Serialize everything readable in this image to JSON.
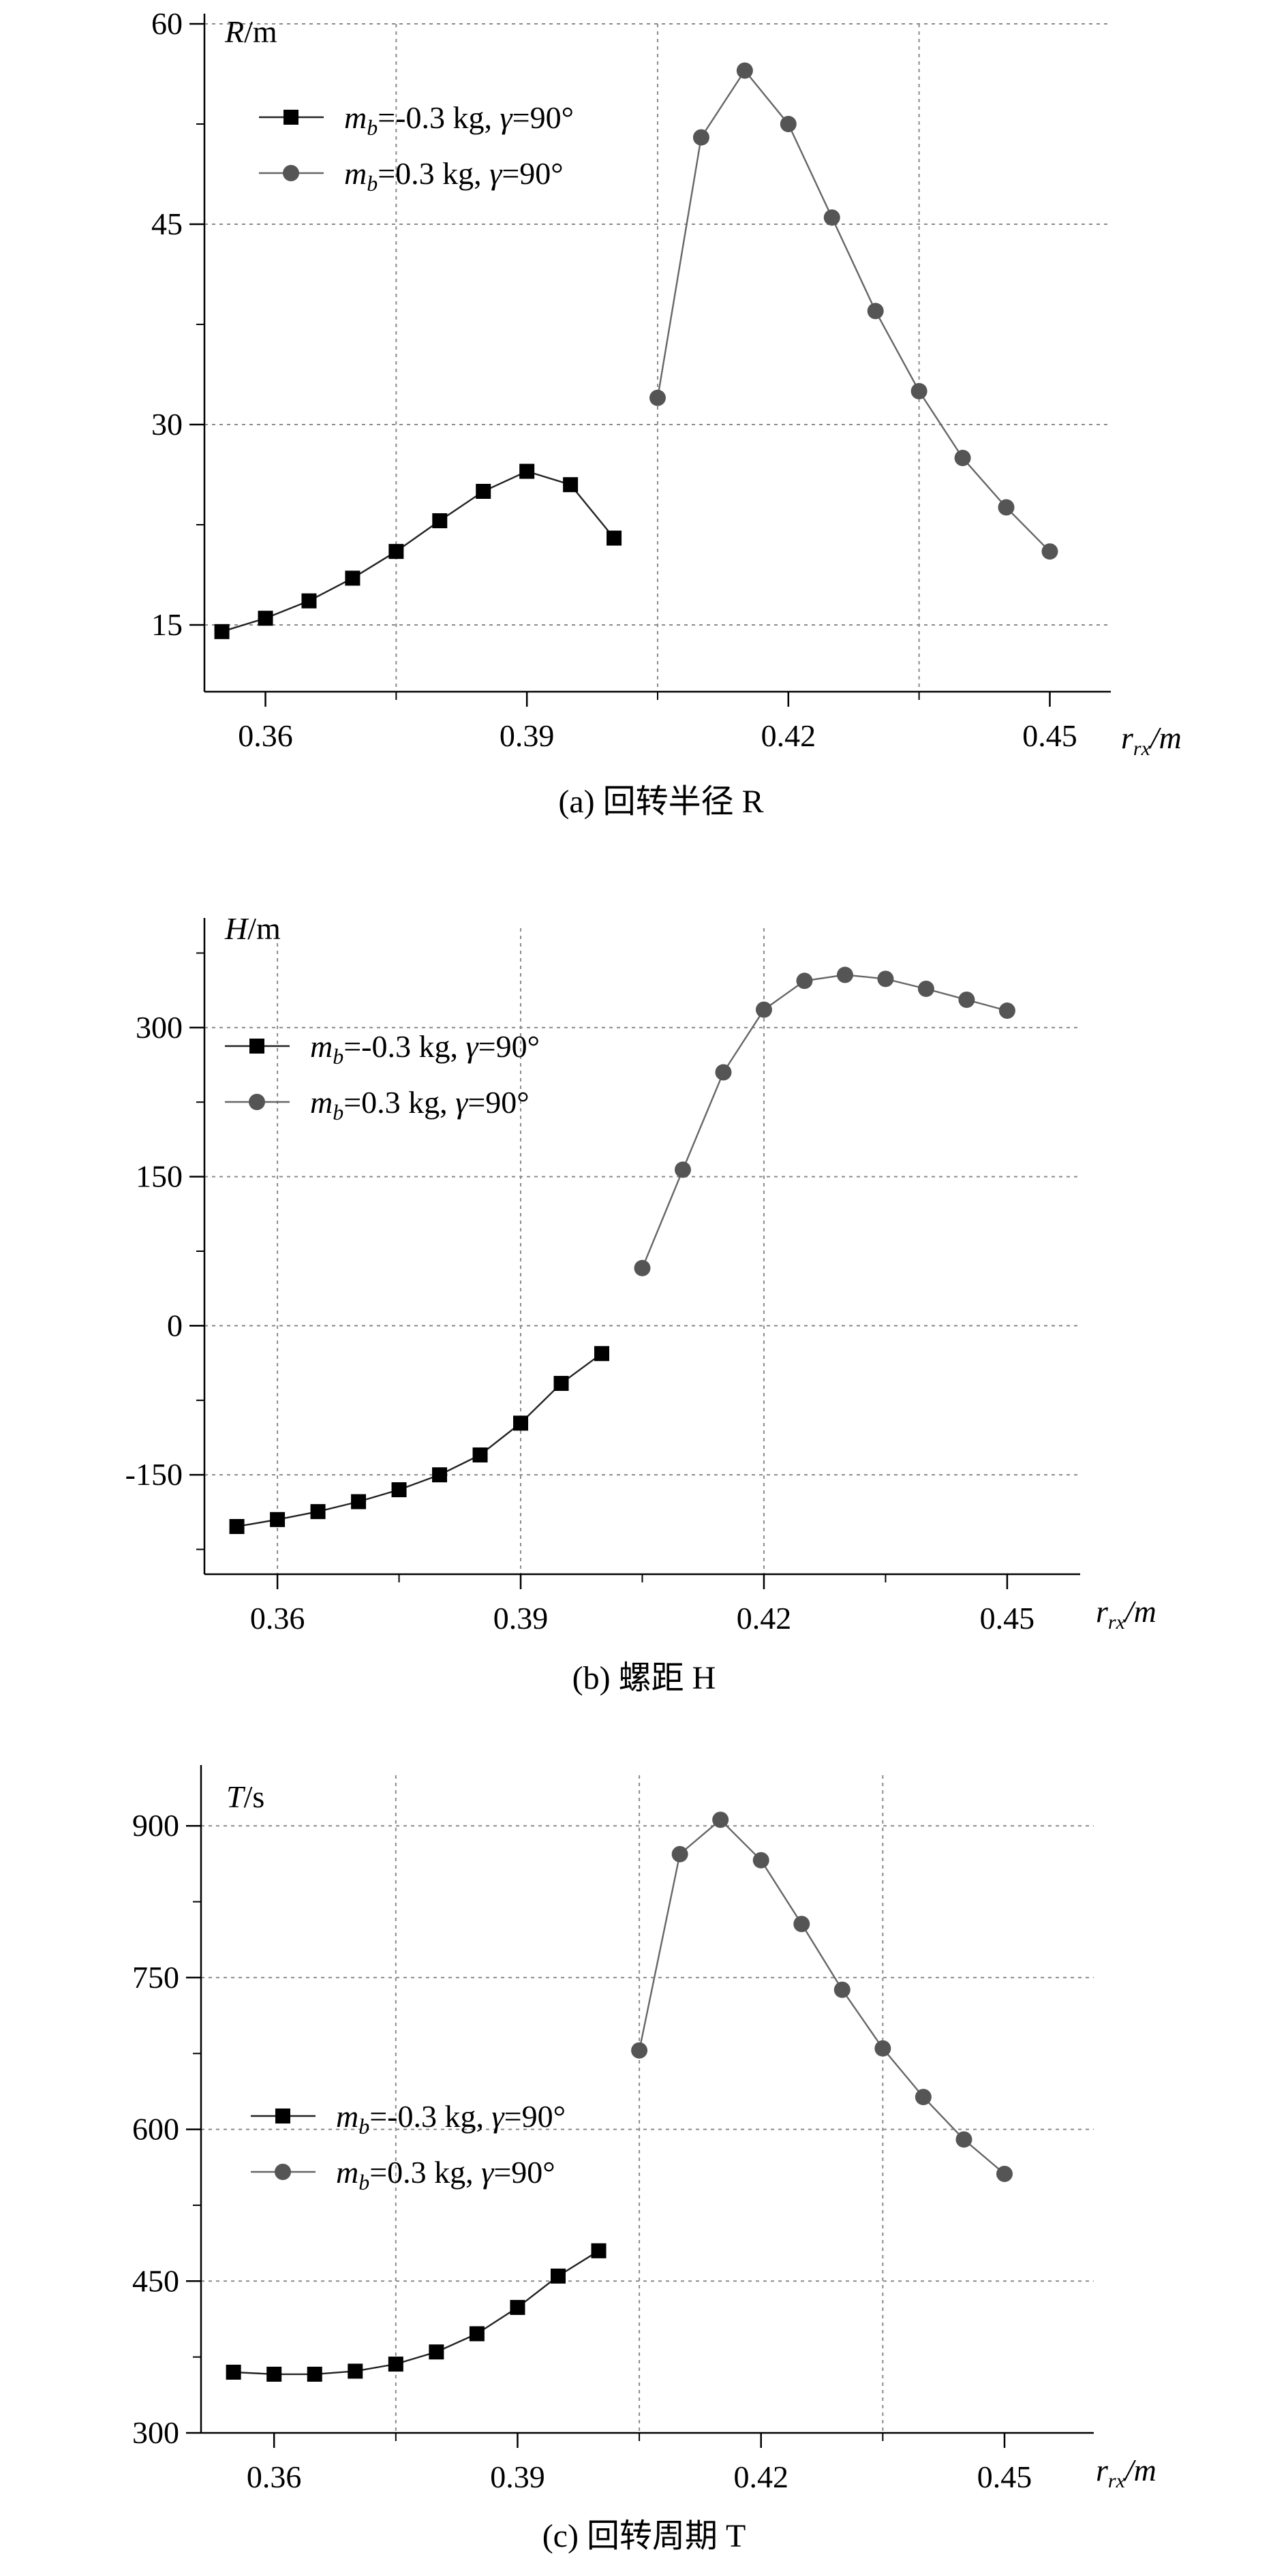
{
  "chart_data": [
    {
      "type": "line",
      "panel": "a",
      "caption": "(a) 回转半径 R",
      "ylabel_sym": "R",
      "ylabel_unit": "/m",
      "xlabel_main": "r",
      "xlabel_sub": "rx",
      "xlabel_unit": "/m",
      "xlim": [
        0.353,
        0.457
      ],
      "ylim": [
        10,
        60
      ],
      "xticks": [
        "0.36",
        "0.39",
        "0.42",
        "0.45"
      ],
      "yticks": [
        "15",
        "30",
        "45",
        "60"
      ],
      "legend_position": "top-left",
      "series": [
        {
          "name": "mb=-0.3 kg, γ=90°",
          "marker": "square",
          "color": "#000000",
          "x": [
            0.355,
            0.36,
            0.365,
            0.37,
            0.375,
            0.38,
            0.385,
            0.39,
            0.395,
            0.4
          ],
          "y": [
            14.5,
            15.5,
            16.8,
            18.5,
            20.5,
            22.8,
            25.0,
            26.5,
            25.5,
            21.5
          ]
        },
        {
          "name": "mb=0.3 kg, γ=90°",
          "marker": "circle",
          "color": "#555555",
          "x": [
            0.405,
            0.41,
            0.415,
            0.42,
            0.425,
            0.43,
            0.435,
            0.44,
            0.445,
            0.45
          ],
          "y": [
            32.0,
            51.5,
            56.5,
            52.5,
            45.5,
            38.5,
            32.5,
            27.5,
            23.8,
            20.5
          ]
        }
      ]
    },
    {
      "type": "line",
      "panel": "b",
      "caption": "(b) 螺距 H",
      "ylabel_sym": "H",
      "ylabel_unit": "/m",
      "xlabel_main": "r",
      "xlabel_sub": "rx",
      "xlabel_unit": "/m",
      "xlim": [
        0.351,
        0.459
      ],
      "ylim": [
        -250,
        400
      ],
      "xticks": [
        "0.36",
        "0.39",
        "0.42",
        "0.45"
      ],
      "yticks": [
        "-150",
        "0",
        "150",
        "300"
      ],
      "legend_position": "top-left",
      "series": [
        {
          "name": "mb=-0.3 kg, γ=90°",
          "marker": "square",
          "color": "#000000",
          "x": [
            0.355,
            0.36,
            0.365,
            0.37,
            0.375,
            0.38,
            0.385,
            0.39,
            0.395,
            0.4
          ],
          "y": [
            -202,
            -195,
            -187,
            -177,
            -165,
            -150,
            -130,
            -98,
            -58,
            -28
          ]
        },
        {
          "name": "mb=0.3 kg, γ=90°",
          "marker": "circle",
          "color": "#555555",
          "x": [
            0.405,
            0.41,
            0.415,
            0.42,
            0.425,
            0.43,
            0.435,
            0.44,
            0.445,
            0.45
          ],
          "y": [
            58,
            157,
            255,
            318,
            347,
            353,
            349,
            339,
            328,
            317
          ]
        }
      ]
    },
    {
      "type": "line",
      "panel": "c",
      "caption": "(c) 回转周期 T",
      "ylabel_sym": "T",
      "ylabel_unit": "/s",
      "xlabel_main": "r",
      "xlabel_sub": "rx",
      "xlabel_unit": "/m",
      "xlim": [
        0.351,
        0.461
      ],
      "ylim": [
        300,
        950
      ],
      "xticks": [
        "0.36",
        "0.39",
        "0.42",
        "0.45"
      ],
      "yticks": [
        "300",
        "450",
        "600",
        "750",
        "900"
      ],
      "legend_position": "middle-left",
      "series": [
        {
          "name": "mb=-0.3 kg, γ=90°",
          "marker": "square",
          "color": "#000000",
          "x": [
            0.355,
            0.36,
            0.365,
            0.37,
            0.375,
            0.38,
            0.385,
            0.39,
            0.395,
            0.4
          ],
          "y": [
            360,
            358,
            358,
            361,
            368,
            380,
            398,
            424,
            455,
            480
          ]
        },
        {
          "name": "mb=0.3 kg, γ=90°",
          "marker": "circle",
          "color": "#555555",
          "x": [
            0.405,
            0.41,
            0.415,
            0.42,
            0.425,
            0.43,
            0.435,
            0.44,
            0.445,
            0.45
          ],
          "y": [
            678,
            872,
            906,
            866,
            803,
            738,
            680,
            632,
            590,
            556
          ]
        }
      ]
    }
  ]
}
